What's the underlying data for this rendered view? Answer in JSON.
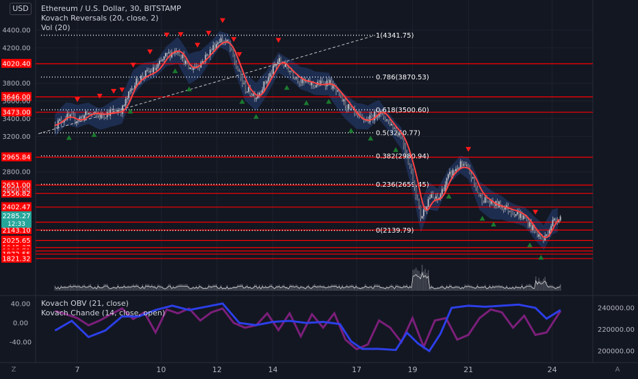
{
  "header": {
    "currency_button": "USD",
    "symbol_line": "Ethereum / U.S. Dollar, 30, BITSTAMP",
    "indicator_1": "Kovach Reversals (20, close, 2)",
    "indicator_2": "Vol (20)",
    "lower_indicator_1": "Kovach OBV (21, close)",
    "lower_indicator_2": "Kovach Chande (14, close, open)"
  },
  "footer": {
    "left_button": "Z",
    "right_button": "A"
  },
  "colors": {
    "background": "#131722",
    "grid": "#1e222d",
    "up_candle": "#b2b5be",
    "level_line": "#ff0000",
    "fib_line": "#ffffff",
    "trend_ma": "#ff4444",
    "band": "#2a4a8a",
    "obv": "#2c3fe8",
    "chande": "#7b1f7a",
    "current_price_tag": "#26a69a",
    "arrow_down": "#ff1a1a",
    "arrow_up": "#1b7a2e"
  },
  "chart_data": [
    {
      "type": "candlestick",
      "title": "Ethereum / U.S. Dollar, 30, BITSTAMP",
      "ylim": [
        2000,
        4500
      ],
      "x_ticks": [
        "7",
        "10",
        "12",
        "14",
        "17",
        "19",
        "21",
        "24"
      ],
      "y_ticks": [
        "4400.00",
        "4200.00",
        "3800.00",
        "3600.00",
        "3400.00",
        "3200.00",
        "2800.00",
        "2600.00"
      ],
      "price_levels": [
        4020.4,
        3646.0,
        3473.0,
        2965.84,
        2651.0,
        2556.82,
        2402.47,
        2232.12,
        2143.1,
        2025.65,
        1945.37,
        1906.71,
        1872.55,
        1821.32
      ],
      "current_price": {
        "price": "2285.27",
        "countdown": "12:33"
      },
      "fib_levels": [
        {
          "label": "1(4341.75)",
          "value": 4341.75
        },
        {
          "label": "0.786(3870.53)",
          "value": 3870.53
        },
        {
          "label": "0.618(3500.60)",
          "value": 3500.6
        },
        {
          "label": "0.5(3240.77)",
          "value": 3240.77
        },
        {
          "label": "0.382(2980.94)",
          "value": 2980.94
        },
        {
          "label": "0.236(2659.45)",
          "value": 2659.45
        },
        {
          "label": "0(2139.79)",
          "value": 2139.79
        }
      ],
      "price_path": [
        {
          "x": 6.2,
          "y": 3330
        },
        {
          "x": 6.6,
          "y": 3420
        },
        {
          "x": 7.0,
          "y": 3390
        },
        {
          "x": 7.4,
          "y": 3460
        },
        {
          "x": 7.8,
          "y": 3430
        },
        {
          "x": 8.2,
          "y": 3480
        },
        {
          "x": 8.6,
          "y": 3500
        },
        {
          "x": 9.0,
          "y": 3780
        },
        {
          "x": 9.4,
          "y": 3900
        },
        {
          "x": 9.8,
          "y": 3960
        },
        {
          "x": 10.2,
          "y": 4120
        },
        {
          "x": 10.6,
          "y": 4180
        },
        {
          "x": 11.0,
          "y": 3960
        },
        {
          "x": 11.4,
          "y": 4020
        },
        {
          "x": 11.8,
          "y": 4180
        },
        {
          "x": 12.1,
          "y": 4300
        },
        {
          "x": 12.4,
          "y": 4250
        },
        {
          "x": 12.7,
          "y": 3980
        },
        {
          "x": 13.0,
          "y": 3740
        },
        {
          "x": 13.4,
          "y": 3650
        },
        {
          "x": 13.8,
          "y": 3840
        },
        {
          "x": 14.2,
          "y": 4060
        },
        {
          "x": 14.6,
          "y": 3950
        },
        {
          "x": 15.0,
          "y": 3820
        },
        {
          "x": 15.5,
          "y": 3780
        },
        {
          "x": 16.0,
          "y": 3820
        },
        {
          "x": 16.5,
          "y": 3600
        },
        {
          "x": 17.0,
          "y": 3420
        },
        {
          "x": 17.4,
          "y": 3380
        },
        {
          "x": 17.8,
          "y": 3480
        },
        {
          "x": 18.2,
          "y": 3350
        },
        {
          "x": 18.6,
          "y": 3200
        },
        {
          "x": 19.0,
          "y": 2750
        },
        {
          "x": 19.3,
          "y": 2280
        },
        {
          "x": 19.6,
          "y": 2520
        },
        {
          "x": 19.9,
          "y": 2480
        },
        {
          "x": 20.3,
          "y": 2750
        },
        {
          "x": 20.7,
          "y": 2880
        },
        {
          "x": 21.0,
          "y": 2830
        },
        {
          "x": 21.4,
          "y": 2520
        },
        {
          "x": 21.8,
          "y": 2440
        },
        {
          "x": 22.2,
          "y": 2420
        },
        {
          "x": 22.6,
          "y": 2350
        },
        {
          "x": 23.0,
          "y": 2280
        },
        {
          "x": 23.4,
          "y": 2120
        },
        {
          "x": 23.7,
          "y": 2030
        },
        {
          "x": 24.0,
          "y": 2230
        },
        {
          "x": 24.3,
          "y": 2300
        }
      ]
    },
    {
      "type": "line",
      "title": "Kovach OBV (21, close) / Kovach Chande (14, close, open)",
      "y_ticks_left": [
        "40.00",
        "0.00",
        "-40.00"
      ],
      "y_ticks_right": [
        "240000.00",
        "220000.00",
        "200000.00"
      ],
      "ylim_left": [
        -70,
        60
      ],
      "ylim_right": [
        195000,
        250000
      ],
      "series": [
        {
          "name": "Kovach OBV (21, close)",
          "axis": "right",
          "points": [
            {
              "x": 6.2,
              "y": 219000
            },
            {
              "x": 6.8,
              "y": 228000
            },
            {
              "x": 7.4,
              "y": 213000
            },
            {
              "x": 8.0,
              "y": 219000
            },
            {
              "x": 8.6,
              "y": 232000
            },
            {
              "x": 9.2,
              "y": 232000
            },
            {
              "x": 9.8,
              "y": 238000
            },
            {
              "x": 10.4,
              "y": 242000
            },
            {
              "x": 11.0,
              "y": 238000
            },
            {
              "x": 11.6,
              "y": 241000
            },
            {
              "x": 12.2,
              "y": 244000
            },
            {
              "x": 12.8,
              "y": 226000
            },
            {
              "x": 13.4,
              "y": 224000
            },
            {
              "x": 14.0,
              "y": 227000
            },
            {
              "x": 14.6,
              "y": 228000
            },
            {
              "x": 15.2,
              "y": 226000
            },
            {
              "x": 15.8,
              "y": 227000
            },
            {
              "x": 16.4,
              "y": 225000
            },
            {
              "x": 16.8,
              "y": 209000
            },
            {
              "x": 17.2,
              "y": 202000
            },
            {
              "x": 17.8,
              "y": 202000
            },
            {
              "x": 18.4,
              "y": 201000
            },
            {
              "x": 18.8,
              "y": 217000
            },
            {
              "x": 19.2,
              "y": 207000
            },
            {
              "x": 19.6,
              "y": 200000
            },
            {
              "x": 20.0,
              "y": 216000
            },
            {
              "x": 20.4,
              "y": 240000
            },
            {
              "x": 21.0,
              "y": 242000
            },
            {
              "x": 21.6,
              "y": 241000
            },
            {
              "x": 22.2,
              "y": 242000
            },
            {
              "x": 22.8,
              "y": 243000
            },
            {
              "x": 23.4,
              "y": 240000
            },
            {
              "x": 23.8,
              "y": 230000
            },
            {
              "x": 24.3,
              "y": 238000
            }
          ]
        },
        {
          "name": "Kovach Chande (14, close, open)",
          "axis": "left",
          "points": [
            {
              "x": 6.2,
              "y": 25
            },
            {
              "x": 6.6,
              "y": 18
            },
            {
              "x": 7.0,
              "y": 10
            },
            {
              "x": 7.4,
              "y": -5
            },
            {
              "x": 7.8,
              "y": 5
            },
            {
              "x": 8.2,
              "y": 18
            },
            {
              "x": 8.6,
              "y": 30
            },
            {
              "x": 9.0,
              "y": 8
            },
            {
              "x": 9.4,
              "y": 22
            },
            {
              "x": 9.8,
              "y": -20
            },
            {
              "x": 10.2,
              "y": 28
            },
            {
              "x": 10.6,
              "y": 20
            },
            {
              "x": 11.0,
              "y": 30
            },
            {
              "x": 11.4,
              "y": 5
            },
            {
              "x": 11.8,
              "y": 22
            },
            {
              "x": 12.2,
              "y": 30
            },
            {
              "x": 12.6,
              "y": 0
            },
            {
              "x": 13.0,
              "y": -10
            },
            {
              "x": 13.4,
              "y": -5
            },
            {
              "x": 13.8,
              "y": 20
            },
            {
              "x": 14.2,
              "y": -15
            },
            {
              "x": 14.6,
              "y": 20
            },
            {
              "x": 15.0,
              "y": -28
            },
            {
              "x": 15.4,
              "y": 18
            },
            {
              "x": 15.8,
              "y": -10
            },
            {
              "x": 16.2,
              "y": 20
            },
            {
              "x": 16.6,
              "y": -35
            },
            {
              "x": 17.0,
              "y": -55
            },
            {
              "x": 17.4,
              "y": -45
            },
            {
              "x": 17.8,
              "y": 5
            },
            {
              "x": 18.2,
              "y": -10
            },
            {
              "x": 18.6,
              "y": -40
            },
            {
              "x": 19.0,
              "y": 10
            },
            {
              "x": 19.4,
              "y": -50
            },
            {
              "x": 19.8,
              "y": 5
            },
            {
              "x": 20.2,
              "y": 10
            },
            {
              "x": 20.6,
              "y": -35
            },
            {
              "x": 21.0,
              "y": -25
            },
            {
              "x": 21.4,
              "y": 10
            },
            {
              "x": 21.8,
              "y": 28
            },
            {
              "x": 22.2,
              "y": 22
            },
            {
              "x": 22.6,
              "y": -10
            },
            {
              "x": 23.0,
              "y": 15
            },
            {
              "x": 23.4,
              "y": -25
            },
            {
              "x": 23.8,
              "y": -20
            },
            {
              "x": 24.3,
              "y": 25
            }
          ]
        }
      ]
    }
  ]
}
